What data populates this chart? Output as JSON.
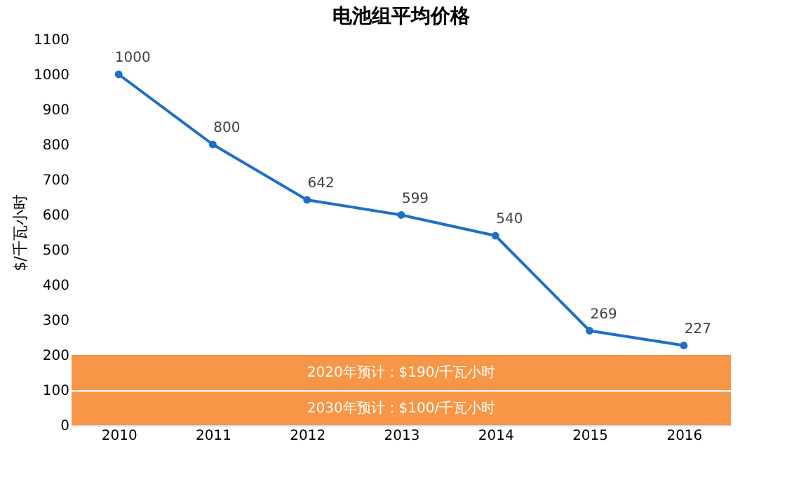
{
  "chart_data": {
    "type": "line",
    "title": "电池组平均价格",
    "ylabel": "$/千瓦小时",
    "categories": [
      "2010",
      "2011",
      "2012",
      "2013",
      "2014",
      "2015",
      "2016"
    ],
    "series": [
      {
        "color": "#1f6fc5",
        "values": [
          1000,
          800,
          642,
          599,
          540,
          269,
          227
        ]
      }
    ],
    "ylim": [
      0,
      1100
    ],
    "yticks": [
      0,
      100,
      200,
      300,
      400,
      500,
      600,
      700,
      800,
      900,
      1000,
      1100
    ],
    "marker": "circle",
    "line_style": "solid",
    "data_labels": true,
    "grid": false,
    "bands": [
      {
        "axis": "y",
        "from": 100,
        "to": 200,
        "label": "2020年预计：$190/千瓦小时",
        "color": "#f79646"
      },
      {
        "axis": "y",
        "from": 0,
        "to": 95,
        "label": "2030年预计：$100/千瓦小时",
        "color": "#f79646"
      }
    ]
  }
}
